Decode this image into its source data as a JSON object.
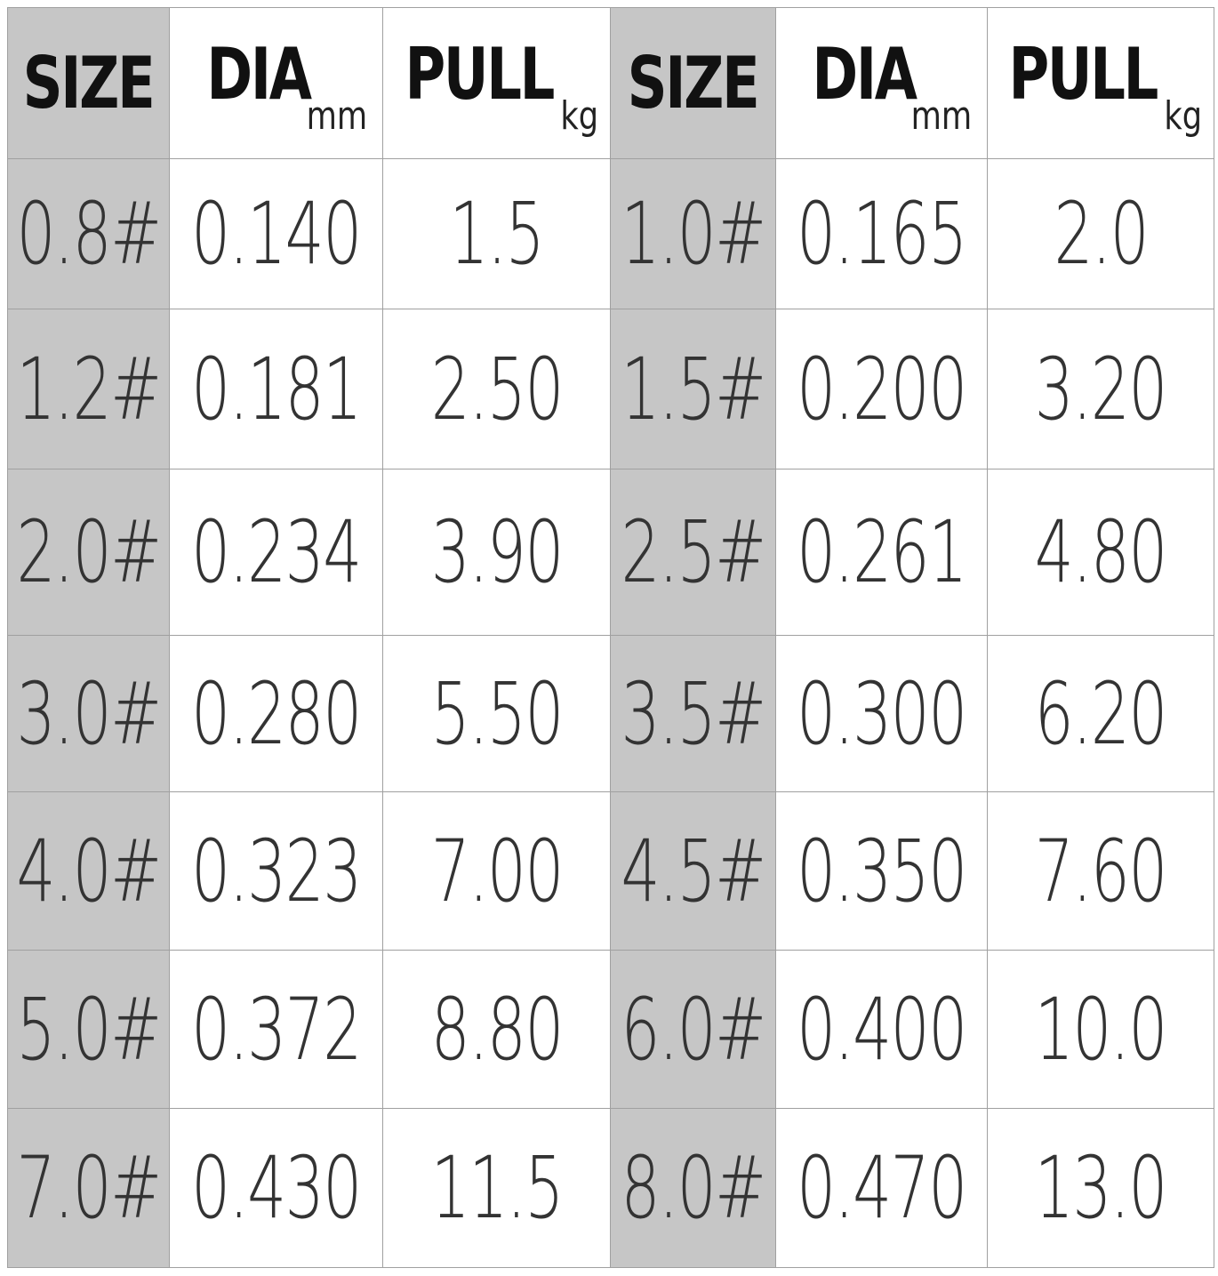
{
  "table": {
    "header": [
      {
        "label": "SIZE"
      },
      {
        "label": "DIA",
        "unit": "mm"
      },
      {
        "label": "PULL",
        "unit": "kg"
      },
      {
        "label": "SIZE"
      },
      {
        "label": "DIA",
        "unit": "mm"
      },
      {
        "label": "PULL",
        "unit": "kg"
      }
    ],
    "rows": [
      [
        "0.8#",
        "0.140",
        "1.5",
        "1.0#",
        "0.165",
        "2.0"
      ],
      [
        "1.2#",
        "0.181",
        "2.50",
        "1.5#",
        "0.200",
        "3.20"
      ],
      [
        "2.0#",
        "0.234",
        "3.90",
        "2.5#",
        "0.261",
        "4.80"
      ],
      [
        "3.0#",
        "0.280",
        "5.50",
        "3.5#",
        "0.300",
        "6.20"
      ],
      [
        "4.0#",
        "0.323",
        "7.00",
        "4.5#",
        "0.350",
        "7.60"
      ],
      [
        "5.0#",
        "0.372",
        "8.80",
        "6.0#",
        "0.400",
        "10.0"
      ],
      [
        "7.0#",
        "0.430",
        "11.5",
        "8.0#",
        "0.470",
        "13.0"
      ]
    ]
  }
}
